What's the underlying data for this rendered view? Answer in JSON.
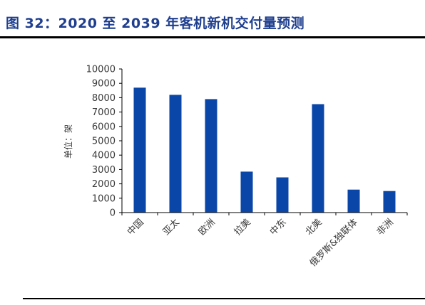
{
  "figure": {
    "title": "图 32：2020 至 2039 年客机新机交付量预测"
  },
  "chart_data": {
    "type": "bar",
    "categories": [
      "中国",
      "亚太",
      "欧洲",
      "拉美",
      "中东",
      "北美",
      "俄罗斯&独联体",
      "非洲"
    ],
    "series": [
      {
        "values": [
          8700,
          8200,
          7900,
          2850,
          2450,
          7550,
          1600,
          1500
        ]
      }
    ],
    "ylabel": "单位：架",
    "xlabel": "",
    "ylim": [
      0,
      10000
    ],
    "yticks": [
      0,
      1000,
      2000,
      3000,
      4000,
      5000,
      6000,
      7000,
      8000,
      9000,
      10000
    ],
    "grid": false,
    "legend": "none",
    "bar_color": "#0a46a8",
    "axis_color": "#000000"
  }
}
